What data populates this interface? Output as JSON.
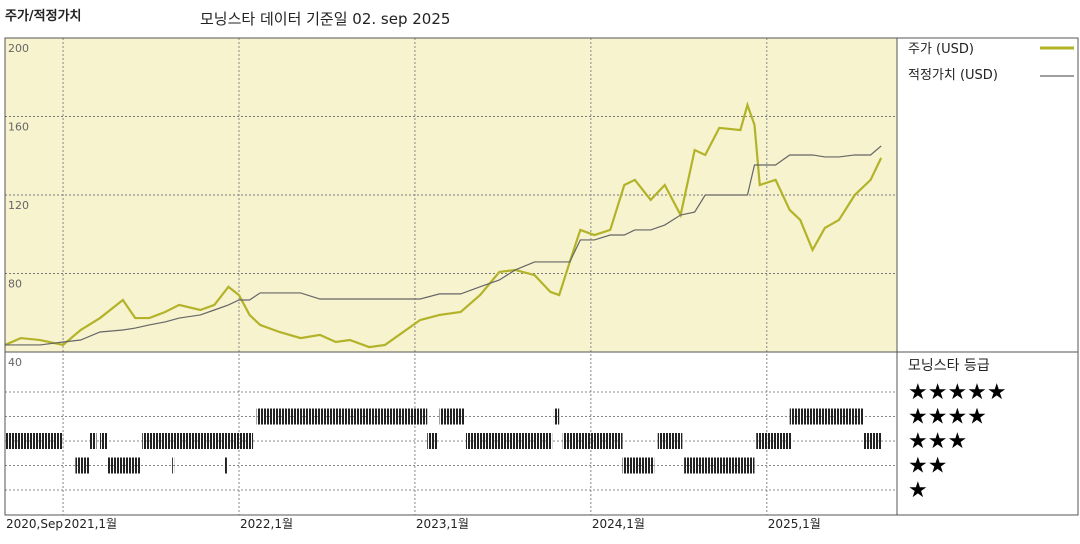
{
  "chart_data": [
    {
      "type": "line",
      "title": "주가/적정가치",
      "subtitle": "모닝스타 데이터 기준일 02. sep 2025",
      "x": [
        2020.67,
        2020.76,
        2020.87,
        2021.0,
        2021.1,
        2021.21,
        2021.34,
        2021.41,
        2021.49,
        2021.58,
        2021.66,
        2021.78,
        2021.86,
        2021.94,
        2022.0,
        2022.06,
        2022.12,
        2022.23,
        2022.35,
        2022.46,
        2022.55,
        2022.63,
        2022.74,
        2022.83,
        2022.91,
        2023.03,
        2023.14,
        2023.26,
        2023.37,
        2023.48,
        2023.57,
        2023.68,
        2023.77,
        2023.82,
        2023.88,
        2023.94,
        2024.02,
        2024.11,
        2024.19,
        2024.25,
        2024.34,
        2024.42,
        2024.51,
        2024.59,
        2024.65,
        2024.73,
        2024.85,
        2024.89,
        2024.93,
        2024.96,
        2025.05,
        2025.13,
        2025.19,
        2025.26,
        2025.33,
        2025.41,
        2025.5,
        2025.59,
        2025.65
      ],
      "series": [
        {
          "name": "주가 (USD)",
          "color": "#b3b32a",
          "values": [
            43.6,
            47.1,
            46.1,
            43.6,
            51.2,
            57.3,
            66.5,
            57.3,
            57.3,
            60.4,
            64.0,
            61.4,
            64.0,
            73.2,
            69.0,
            58.9,
            53.8,
            50.2,
            47.1,
            48.7,
            45.1,
            46.1,
            42.5,
            43.6,
            48.7,
            56.3,
            58.9,
            60.4,
            69.0,
            80.8,
            81.8,
            79.2,
            70.6,
            69.0,
            85.9,
            102.2,
            99.6,
            102.2,
            125.1,
            127.7,
            117.5,
            125.1,
            109.8,
            142.9,
            140.4,
            154.2,
            153.1,
            165.9,
            155.7,
            125.1,
            127.7,
            112.4,
            107.3,
            92.0,
            103.2,
            107.3,
            120.0,
            127.7,
            138.9
          ]
        },
        {
          "name": "적정가치 (USD)",
          "color": "#666666",
          "values": [
            43.6,
            43.6,
            43.6,
            45.1,
            46.1,
            50.2,
            51.2,
            52.2,
            53.8,
            55.3,
            57.3,
            58.9,
            61.4,
            64.0,
            66.5,
            66.5,
            70.1,
            70.1,
            70.1,
            67.0,
            67.0,
            67.0,
            67.0,
            67.0,
            67.0,
            67.0,
            69.6,
            69.6,
            73.2,
            76.7,
            81.8,
            85.9,
            85.9,
            85.9,
            85.9,
            97.1,
            97.1,
            99.6,
            99.6,
            102.2,
            102.2,
            104.7,
            109.8,
            111.3,
            120.0,
            120.0,
            120.0,
            120.0,
            135.3,
            135.3,
            135.3,
            140.4,
            140.4,
            140.4,
            139.4,
            139.4,
            140.4,
            140.4,
            145.0
          ]
        }
      ],
      "ylim": [
        40,
        200
      ],
      "yticks": [
        40,
        80,
        120,
        160,
        200
      ],
      "xlim": [
        2020.67,
        2025.74
      ],
      "xticks": [
        {
          "value": 2020.67,
          "label": "2020,Sep"
        },
        {
          "value": 2021,
          "label": "2021,1월"
        },
        {
          "value": 2022,
          "label": "2022,1월"
        },
        {
          "value": 2023,
          "label": "2023,1월"
        },
        {
          "value": 2024,
          "label": "2024,1월"
        },
        {
          "value": 2025,
          "label": "2025,1월"
        }
      ],
      "grid": true,
      "background": "#f7f3cf"
    },
    {
      "type": "timeline",
      "title": "모닝스타 등급",
      "categories": [
        "★★★★★",
        "★★★★",
        "★★★",
        "★★",
        "★"
      ],
      "levels": [
        5,
        4,
        3,
        2,
        1
      ],
      "color": "#222222",
      "start": [
        2020.67,
        2021.15,
        2021.21,
        2021.45,
        2023.07,
        2023.29,
        2023.84,
        2024.38,
        2024.94,
        2025.55,
        2022.1,
        2023.14,
        2023.79,
        2025.13,
        2021.07,
        2021.25,
        2021.62,
        2021.92,
        2024.18,
        2024.53
      ],
      "end": [
        2021.0,
        2021.19,
        2021.25,
        2022.08,
        2023.13,
        2023.78,
        2024.18,
        2024.52,
        2025.14,
        2025.65,
        2023.07,
        2023.28,
        2023.82,
        2025.55,
        2021.15,
        2021.44,
        2021.63,
        2021.93,
        2024.36,
        2024.93
      ],
      "stars": [
        3,
        3,
        3,
        3,
        3,
        3,
        3,
        3,
        3,
        3,
        4,
        4,
        4,
        4,
        2,
        2,
        2,
        2,
        2,
        2
      ]
    }
  ]
}
